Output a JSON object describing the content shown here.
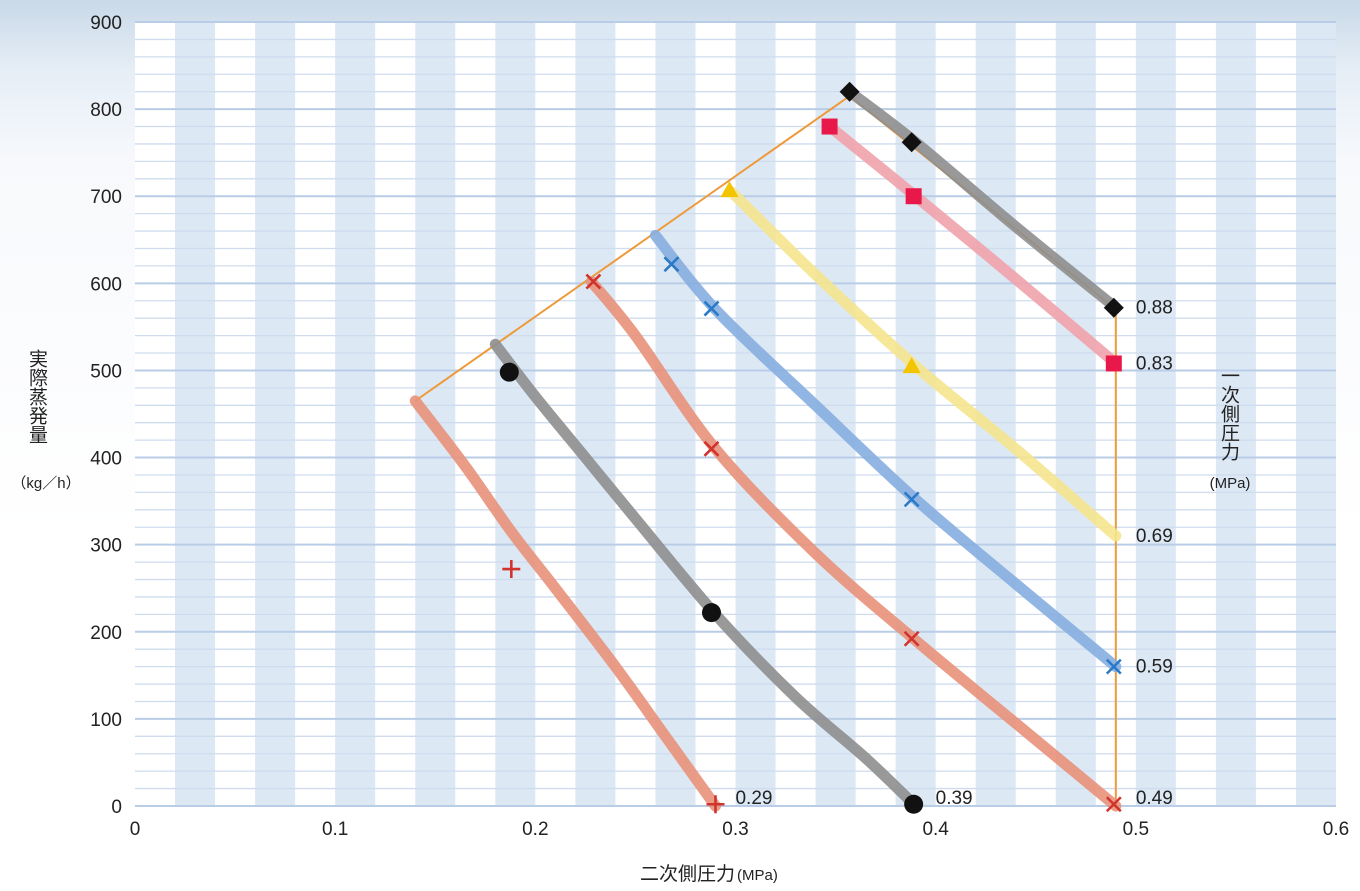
{
  "chart_data": {
    "type": "line",
    "xlabel": "二次側圧力",
    "xlabel_unit": "(MPa)",
    "ylabel": "実際蒸発量",
    "ylabel_unit": "（kg／h）",
    "right_label": "一次側圧力",
    "right_label_unit": "(MPa)",
    "xlim": [
      0,
      0.6
    ],
    "ylim": [
      0,
      900
    ],
    "x_ticks": [
      "0",
      "0.1",
      "0.2",
      "0.3",
      "0.4",
      "0.5",
      "0.6"
    ],
    "y_ticks": [
      "0",
      "100",
      "200",
      "300",
      "400",
      "500",
      "600",
      "700",
      "800",
      "900"
    ],
    "grid": true,
    "envelope": [
      [
        0.14,
        465
      ],
      [
        0.357,
        815
      ],
      [
        0.49,
        570
      ],
      [
        0.49,
        0
      ]
    ],
    "series": [
      {
        "name": "0.29",
        "color": "#e8917a",
        "markerColor": "#d0342c",
        "marker": "plus",
        "line": [
          [
            0.14,
            465
          ],
          [
            0.165,
            390
          ],
          [
            0.188,
            315
          ],
          [
            0.21,
            250
          ],
          [
            0.24,
            160
          ],
          [
            0.265,
            80
          ],
          [
            0.29,
            0
          ]
        ],
        "markers": [
          [
            0.188,
            272
          ],
          [
            0.29,
            2
          ]
        ]
      },
      {
        "name": "0.39",
        "color": "#8e8e8e",
        "markerColor": "#111111",
        "marker": "circle",
        "line": [
          [
            0.18,
            530
          ],
          [
            0.2,
            470
          ],
          [
            0.225,
            400
          ],
          [
            0.25,
            330
          ],
          [
            0.29,
            220
          ],
          [
            0.33,
            125
          ],
          [
            0.365,
            55
          ],
          [
            0.39,
            0
          ]
        ],
        "markers": [
          [
            0.187,
            498
          ],
          [
            0.288,
            222
          ],
          [
            0.389,
            2
          ]
        ]
      },
      {
        "name": "0.49",
        "color": "#e8917a",
        "markerColor": "#d0342c",
        "marker": "x",
        "line": [
          [
            0.228,
            602
          ],
          [
            0.25,
            540
          ],
          [
            0.29,
            410
          ],
          [
            0.34,
            290
          ],
          [
            0.39,
            190
          ],
          [
            0.44,
            95
          ],
          [
            0.49,
            0
          ]
        ],
        "markers": [
          [
            0.229,
            602
          ],
          [
            0.288,
            410
          ],
          [
            0.388,
            192
          ],
          [
            0.489,
            2
          ]
        ]
      },
      {
        "name": "0.59",
        "color": "#86aee0",
        "markerColor": "#2a7ac8",
        "marker": "x",
        "line": [
          [
            0.26,
            655
          ],
          [
            0.29,
            570
          ],
          [
            0.34,
            460
          ],
          [
            0.39,
            352
          ],
          [
            0.44,
            255
          ],
          [
            0.49,
            160
          ]
        ],
        "markers": [
          [
            0.268,
            622
          ],
          [
            0.288,
            571
          ],
          [
            0.388,
            352
          ],
          [
            0.489,
            160
          ]
        ]
      },
      {
        "name": "0.69",
        "color": "#f5e48e",
        "markerColor": "#f2c500",
        "marker": "triangle",
        "line": [
          [
            0.298,
            705
          ],
          [
            0.34,
            610
          ],
          [
            0.39,
            505
          ],
          [
            0.44,
            410
          ],
          [
            0.49,
            310
          ]
        ],
        "markers": [
          [
            0.297,
            707
          ],
          [
            0.388,
            505
          ]
        ]
      },
      {
        "name": "0.83",
        "color": "#f0a2ab",
        "markerColor": "#e8194a",
        "marker": "square",
        "line": [
          [
            0.347,
            780
          ],
          [
            0.39,
            700
          ],
          [
            0.44,
            605
          ],
          [
            0.49,
            508
          ]
        ],
        "markers": [
          [
            0.347,
            780
          ],
          [
            0.389,
            700
          ],
          [
            0.489,
            508
          ]
        ]
      },
      {
        "name": "0.88",
        "color": "#8e8e8e",
        "markerColor": "#111111",
        "marker": "diamond",
        "line": [
          [
            0.357,
            820
          ],
          [
            0.39,
            762
          ],
          [
            0.44,
            665
          ],
          [
            0.49,
            572
          ]
        ],
        "markers": [
          [
            0.357,
            820
          ],
          [
            0.388,
            762
          ],
          [
            0.489,
            572
          ]
        ]
      }
    ]
  }
}
